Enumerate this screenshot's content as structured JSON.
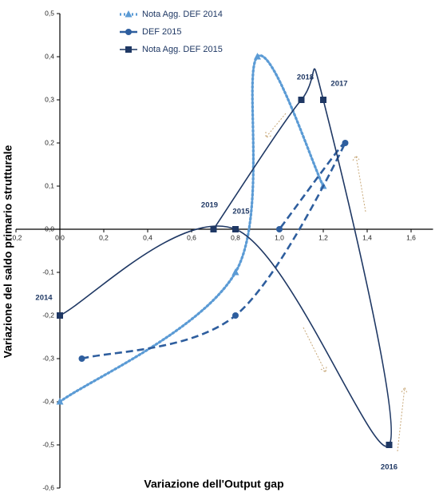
{
  "chart_data": {
    "type": "scatter",
    "x_label": "Variazione dell'Output gap",
    "y_label": "Variazione del saldo primario strutturale",
    "xlim": [
      -0.2,
      1.7
    ],
    "ylim": [
      -0.6,
      0.5
    ],
    "xticks": [
      {
        "value": -0.2,
        "label": "-0,2"
      },
      {
        "value": 0,
        "label": "0,0"
      },
      {
        "value": 0.2,
        "label": "0,2"
      },
      {
        "value": 0.4,
        "label": "0,4"
      },
      {
        "value": 0.6,
        "label": "0,6"
      },
      {
        "value": 0.8,
        "label": "0,8"
      },
      {
        "value": 1.0,
        "label": "1,0"
      },
      {
        "value": 1.2,
        "label": "1,2"
      },
      {
        "value": 1.4,
        "label": "1,4"
      },
      {
        "value": 1.6,
        "label": "1,6"
      }
    ],
    "yticks": [
      {
        "value": -0.6,
        "label": "-0,6"
      },
      {
        "value": -0.5,
        "label": "-0,5"
      },
      {
        "value": -0.4,
        "label": "-0,4"
      },
      {
        "value": -0.3,
        "label": "-0,3"
      },
      {
        "value": -0.2,
        "label": "-0,2"
      },
      {
        "value": -0.1,
        "label": "-0,1"
      },
      {
        "value": 0,
        "label": "0,0"
      },
      {
        "value": 0.1,
        "label": "0,1"
      },
      {
        "value": 0.2,
        "label": "0,2"
      },
      {
        "value": 0.3,
        "label": "0,3"
      },
      {
        "value": 0.4,
        "label": "0,4"
      },
      {
        "value": 0.5,
        "label": "0,5"
      }
    ],
    "series": [
      {
        "name": "Nota Agg. DEF 2014",
        "color": "#5b9bd5",
        "line_style": "dotted",
        "marker": "triangle",
        "x": [
          0,
          0.8,
          0.9,
          1.2
        ],
        "values": [
          -0.4,
          -0.1,
          0.4,
          0.1
        ]
      },
      {
        "name": "DEF 2015",
        "color": "#2e5e9e",
        "line_style": "dashed",
        "marker": "circle",
        "x": [
          0.1,
          0.8,
          1.3,
          1.0
        ],
        "values": [
          -0.3,
          -0.2,
          0.2,
          0.0
        ]
      },
      {
        "name": "Nota Agg. DEF 2015",
        "color": "#1f3864",
        "line_style": "solid",
        "marker": "square",
        "x": [
          0,
          0.8,
          1.5,
          1.2,
          1.1,
          0.7
        ],
        "values": [
          -0.2,
          0.0,
          -0.5,
          0.3,
          0.3,
          0.0
        ],
        "point_labels": [
          "2014",
          "2015",
          "2016",
          "2017",
          "2018",
          "2019"
        ]
      }
    ]
  }
}
